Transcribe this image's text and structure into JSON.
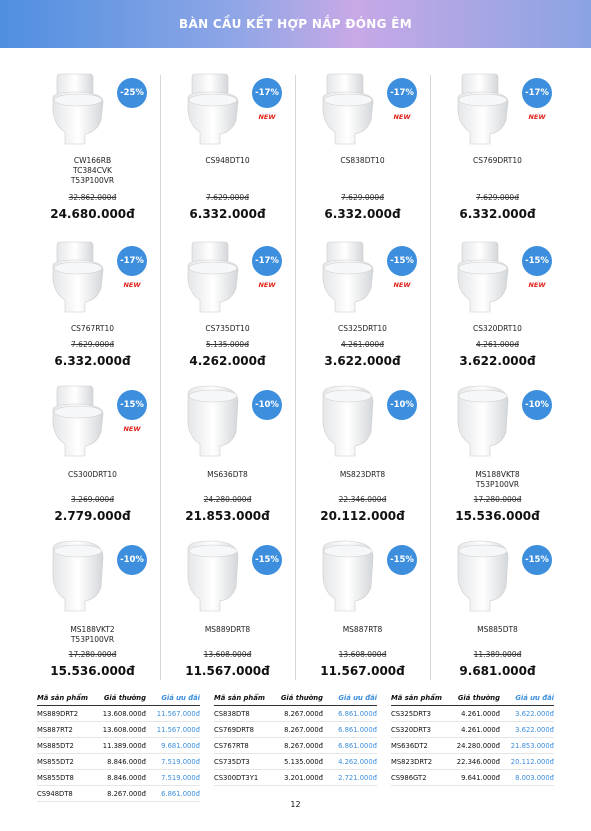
{
  "header": {
    "title": "BÀN CẦU KẾT HỢP NẮP ĐÓNG ÊM"
  },
  "products": [
    {
      "name": [
        "CW166RB",
        "TC384CVK",
        "T53P100VR"
      ],
      "old_price": "32.862.000đ",
      "price": "24.680.000đ",
      "discount": "-25%"
    },
    {
      "name": [
        "CS948DT10"
      ],
      "old_price": "7.629.000đ",
      "price": "6.332.000đ",
      "discount": "-17%",
      "badge": "NEW"
    },
    {
      "name": [
        "CS838DT10"
      ],
      "old_price": "7.629.000đ",
      "price": "6.332.000đ",
      "discount": "-17%",
      "badge": "NEW"
    },
    {
      "name": [
        "CS769DRT10"
      ],
      "old_price": "7.629.000đ",
      "price": "6.332.000đ",
      "discount": "-17%",
      "badge": "NEW"
    },
    {
      "name": [
        "CS767RT10"
      ],
      "old_price": "7.629.000đ",
      "price": "6.332.000đ",
      "discount": "-17%",
      "badge": "NEW"
    },
    {
      "name": [
        "CS735DT10"
      ],
      "old_price": "5.135.000đ",
      "price": "4.262.000đ",
      "discount": "-17%",
      "badge": "NEW"
    },
    {
      "name": [
        "CS325DRT10"
      ],
      "old_price": "4.261.000đ",
      "price": "3.622.000đ",
      "discount": "-15%",
      "badge": "NEW"
    },
    {
      "name": [
        "CS320DRT10"
      ],
      "old_price": "4.261.000đ",
      "price": "3.622.000đ",
      "discount": "-15%",
      "badge": "NEW"
    },
    {
      "name": [
        "CS300DRT10"
      ],
      "old_price": "3.269.000đ",
      "price": "2.779.000đ",
      "discount": "-15%",
      "badge": "NEW"
    },
    {
      "name": [
        "MS636DT8"
      ],
      "old_price": "24.280.000đ",
      "price": "21.853.000đ",
      "discount": "-10%"
    },
    {
      "name": [
        "MS823DRT8"
      ],
      "old_price": "22.346.000đ",
      "price": "20.112.000đ",
      "discount": "-10%"
    },
    {
      "name": [
        "MS188VKT8",
        "T53P100VR"
      ],
      "old_price": "17.280.000đ",
      "price": "15.536.000đ",
      "discount": "-10%"
    },
    {
      "name": [
        "MS188VKT2",
        "T53P100VR"
      ],
      "old_price": "17.280.000đ",
      "price": "15.536.000đ",
      "discount": "-10%"
    },
    {
      "name": [
        "MS889DRT8"
      ],
      "old_price": "13.608.000đ",
      "price": "11.567.000đ",
      "discount": "-15%"
    },
    {
      "name": [
        "MS887RT8"
      ],
      "old_price": "13.608.000đ",
      "price": "11.567.000đ",
      "discount": "-15%"
    },
    {
      "name": [
        "MS885DT8"
      ],
      "old_price": "11.389.000đ",
      "price": "9.681.000đ",
      "discount": "-15%"
    }
  ],
  "tables": [
    {
      "header": [
        "Mã sản phẩm",
        "Giá thường",
        "Giá ưu đãi"
      ],
      "rows": [
        [
          "MS889DRT2",
          "13.608.000đ",
          "11.567.000đ"
        ],
        [
          "MS887RT2",
          "13.608.000đ",
          "11.567.000đ"
        ],
        [
          "MS885DT2",
          "11.389.000đ",
          "9.681.000đ"
        ],
        [
          "MS855DT2",
          "8.846.000đ",
          "7.519.000đ"
        ],
        [
          "MS855DT8",
          "8.846.000đ",
          "7.519.000đ"
        ],
        [
          "CS948DT8",
          "8.267.000đ",
          "6.861.000đ"
        ]
      ]
    },
    {
      "header": [
        "Mã sản phẩm",
        "Giá thường",
        "Giá ưu đãi"
      ],
      "rows": [
        [
          "CS838DT8",
          "8.267.000đ",
          "6.861.000đ"
        ],
        [
          "CS769DRT8",
          "8.267.000đ",
          "6.861.000đ"
        ],
        [
          "CS767RT8",
          "8.267.000đ",
          "6.861.000đ"
        ],
        [
          "CS735DT3",
          "5.135.000đ",
          "4.262.000đ"
        ],
        [
          "CS300DT3Y1",
          "3.201.000đ",
          "2.721.000đ"
        ]
      ]
    },
    {
      "header": [
        "Mã sản phẩm",
        "Giá thường",
        "Giá ưu đãi"
      ],
      "rows": [
        [
          "CS325DRT3",
          "4.261.000đ",
          "3.622.000đ"
        ],
        [
          "CS320DRT3",
          "4.261.000đ",
          "3.622.000đ"
        ],
        [
          "MS636DT2",
          "24.280.000đ",
          "21.853.000đ"
        ],
        [
          "MS823DRT2",
          "22.346.000đ",
          "20.112.000đ"
        ],
        [
          "CS986GT2",
          "9.641.000đ",
          "8.003.000đ"
        ]
      ]
    }
  ],
  "footer": {
    "page": "12"
  }
}
